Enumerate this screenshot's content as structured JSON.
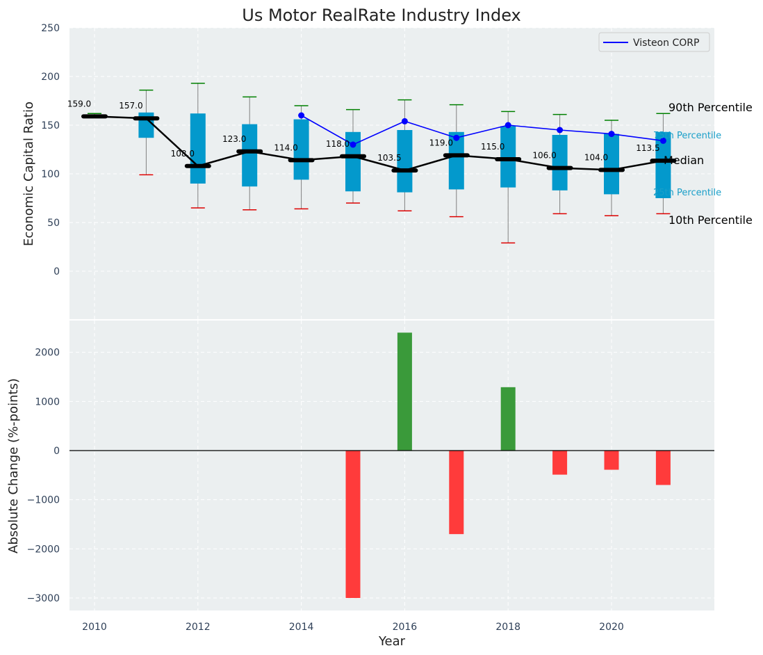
{
  "chart_data": [
    {
      "type": "box",
      "title": "Us Motor RealRate Industry Index",
      "ylabel": "Economic Capital Ratio",
      "ylim": [
        -50,
        250
      ],
      "yticks": [
        0,
        50,
        100,
        150,
        200,
        250
      ],
      "grid": true,
      "legend_placement": "top-right",
      "x": [
        2010,
        2011,
        2012,
        2013,
        2014,
        2015,
        2016,
        2017,
        2018,
        2019,
        2020,
        2021
      ],
      "p10": [
        159,
        99,
        65,
        63,
        64,
        70,
        62,
        56,
        29,
        59,
        57,
        59
      ],
      "p25": [
        159,
        137,
        90,
        87,
        94,
        82,
        81,
        84,
        86,
        83,
        79,
        75
      ],
      "median": [
        159.0,
        157.0,
        108.0,
        123.0,
        114.0,
        118.0,
        103.5,
        119.0,
        115.0,
        106.0,
        104.0,
        113.5
      ],
      "median_labels": [
        "159.0",
        "157.0",
        "108.0",
        "123.0",
        "114.0",
        "118.0",
        "103.5",
        "119.0",
        "115.0",
        "106.0",
        "104.0",
        "113.5"
      ],
      "p75": [
        159,
        163,
        162,
        151,
        156,
        143,
        145,
        143,
        149,
        140,
        141,
        143
      ],
      "p90": [
        162,
        186,
        193,
        179,
        170,
        166,
        176,
        171,
        164,
        161,
        155,
        162
      ],
      "series": [
        {
          "name": "Visteon CORP",
          "color": "#0000ff",
          "x": [
            2014,
            2015,
            2016,
            2017,
            2018,
            2019,
            2020,
            2021
          ],
          "values": [
            160,
            130,
            154,
            137,
            150,
            145,
            141,
            134
          ]
        }
      ],
      "annotations": [
        "90th Percentile",
        "75th Percentile",
        "Median",
        "25th Percentile",
        "10th Percentile"
      ]
    },
    {
      "type": "bar",
      "xlabel": "Year",
      "ylabel": "Absolute Change (%-points)",
      "ylim": [
        -3250,
        2700
      ],
      "yticks": [
        -3000,
        -2000,
        -1000,
        0,
        1000,
        2000
      ],
      "ytick_labels": [
        "−3000",
        "−2000",
        "−1000",
        "0",
        "1000",
        "2000"
      ],
      "xticks": [
        2010,
        2012,
        2014,
        2016,
        2018,
        2020
      ],
      "x": [
        2015,
        2016,
        2017,
        2018,
        2019,
        2020,
        2021
      ],
      "values": [
        -3000,
        2400,
        -1700,
        1290,
        -490,
        -390,
        -700
      ],
      "colors": {
        "positive": "#3a9a3a",
        "negative": "#ff3b3b"
      }
    }
  ]
}
